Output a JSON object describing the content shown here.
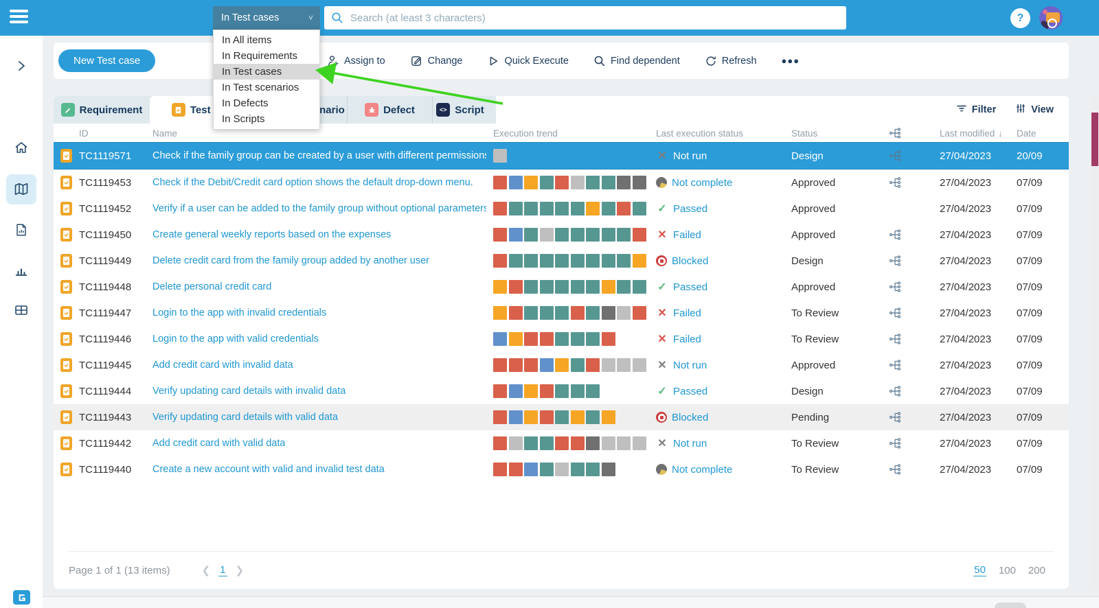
{
  "topbar": {
    "scope_value": "In Test cases",
    "search_placeholder": "Search (at least 3 characters)",
    "help_label": "?"
  },
  "scope_dropdown": {
    "items": [
      "In All items",
      "In Requirements",
      "In Test cases",
      "In Test scenarios",
      "In Defects",
      "In Scripts"
    ],
    "selected": "In Test cases",
    "selected_index": 2
  },
  "toolbar": {
    "new_button_label": "New Test case",
    "actions": [
      {
        "icon": "assign-icon",
        "label": "Assign to"
      },
      {
        "icon": "change-icon",
        "label": "Change"
      },
      {
        "icon": "quick-execute-icon",
        "label": "Quick Execute"
      },
      {
        "icon": "find-dependent-icon",
        "label": "Find dependent"
      },
      {
        "icon": "refresh-icon",
        "label": "Refresh"
      }
    ]
  },
  "tabs": [
    {
      "label": "Requirement",
      "active": false
    },
    {
      "label": "Test case",
      "active": true
    },
    {
      "label": "Test scenario",
      "active": false
    },
    {
      "label": "Defect",
      "active": false
    },
    {
      "label": "Script",
      "active": false
    }
  ],
  "list_header": {
    "filter_label": "Filter",
    "view_label": "View"
  },
  "table": {
    "columns": {
      "id": "ID",
      "name": "Name",
      "trend": "Execution trend",
      "exec": "Last execution status",
      "status": "Status",
      "modified": "Last modified",
      "date": "Date"
    },
    "rows": [
      {
        "id": "TC1119571",
        "name": "Check if the family group can be created by a user with different permissions",
        "trend": [
          "gray"
        ],
        "exec": {
          "type": "notrun",
          "label": "Not run"
        },
        "status": "Design",
        "tree": true,
        "modified": "27/04/2023",
        "date": "20/09",
        "selected": true,
        "highlight": false
      },
      {
        "id": "TC1119453",
        "name": "Check if the Debit/Credit card option shows the default drop-down menu.",
        "trend": [
          "red",
          "blue",
          "orange",
          "teal",
          "red",
          "gray",
          "teal",
          "teal",
          "darkgray",
          "darkgray"
        ],
        "exec": {
          "type": "notcomplete",
          "label": "Not complete"
        },
        "status": "Approved",
        "tree": true,
        "modified": "27/04/2023",
        "date": "07/09",
        "selected": false,
        "highlight": false
      },
      {
        "id": "TC1119452",
        "name": "Verify if a user can be added to the family group without optional parameters",
        "trend": [
          "red",
          "teal",
          "teal",
          "teal",
          "teal",
          "teal",
          "orange",
          "teal",
          "red",
          "teal"
        ],
        "exec": {
          "type": "passed",
          "label": "Passed"
        },
        "status": "Approved",
        "tree": false,
        "modified": "27/04/2023",
        "date": "07/09",
        "selected": false,
        "highlight": false
      },
      {
        "id": "TC1119450",
        "name": "Create general weekly reports based on the expenses",
        "trend": [
          "red",
          "blue",
          "teal",
          "gray",
          "teal",
          "teal",
          "teal",
          "teal",
          "teal",
          "red"
        ],
        "exec": {
          "type": "failed",
          "label": "Failed"
        },
        "status": "Approved",
        "tree": true,
        "modified": "27/04/2023",
        "date": "07/09",
        "selected": false,
        "highlight": false
      },
      {
        "id": "TC1119449",
        "name": "Delete credit card from the family group added by another user",
        "trend": [
          "red",
          "teal",
          "teal",
          "teal",
          "teal",
          "teal",
          "teal",
          "teal",
          "teal",
          "orange"
        ],
        "exec": {
          "type": "blocked",
          "label": "Blocked"
        },
        "status": "Design",
        "tree": true,
        "modified": "27/04/2023",
        "date": "07/09",
        "selected": false,
        "highlight": false
      },
      {
        "id": "TC1119448",
        "name": "Delete personal credit card",
        "trend": [
          "orange",
          "red",
          "teal",
          "teal",
          "teal",
          "teal",
          "teal",
          "orange",
          "teal",
          "teal"
        ],
        "exec": {
          "type": "passed",
          "label": "Passed"
        },
        "status": "Approved",
        "tree": true,
        "modified": "27/04/2023",
        "date": "07/09",
        "selected": false,
        "highlight": false
      },
      {
        "id": "TC1119447",
        "name": "Login to the app with invalid credentials",
        "trend": [
          "orange",
          "red",
          "teal",
          "teal",
          "teal",
          "red",
          "teal",
          "darkgray",
          "gray",
          "red"
        ],
        "exec": {
          "type": "failed",
          "label": "Failed"
        },
        "status": "To Review",
        "tree": true,
        "modified": "27/04/2023",
        "date": "07/09",
        "selected": false,
        "highlight": false
      },
      {
        "id": "TC1119446",
        "name": "Login to the app with valid credentials",
        "trend": [
          "blue",
          "orange",
          "red",
          "red",
          "teal",
          "teal",
          "teal",
          "red"
        ],
        "exec": {
          "type": "failed",
          "label": "Failed"
        },
        "status": "To Review",
        "tree": true,
        "modified": "27/04/2023",
        "date": "07/09",
        "selected": false,
        "highlight": false
      },
      {
        "id": "TC1119445",
        "name": "Add credit card with invalid data",
        "trend": [
          "red",
          "red",
          "red",
          "blue",
          "orange",
          "teal",
          "red",
          "gray",
          "gray",
          "gray"
        ],
        "exec": {
          "type": "notrun",
          "label": "Not run"
        },
        "status": "Approved",
        "tree": true,
        "modified": "27/04/2023",
        "date": "07/09",
        "selected": false,
        "highlight": false
      },
      {
        "id": "TC1119444",
        "name": "Verify updating card details with invalid data",
        "trend": [
          "red",
          "blue",
          "orange",
          "red",
          "teal",
          "teal",
          "teal"
        ],
        "exec": {
          "type": "passed",
          "label": "Passed"
        },
        "status": "Design",
        "tree": true,
        "modified": "27/04/2023",
        "date": "07/09",
        "selected": false,
        "highlight": false
      },
      {
        "id": "TC1119443",
        "name": "Verify updating card details with valid data",
        "trend": [
          "red",
          "blue",
          "orange",
          "red",
          "teal",
          "orange",
          "teal",
          "orange"
        ],
        "exec": {
          "type": "blocked",
          "label": "Blocked"
        },
        "status": "Pending",
        "tree": true,
        "modified": "27/04/2023",
        "date": "07/09",
        "selected": false,
        "highlight": true
      },
      {
        "id": "TC1119442",
        "name": "Add credit card with valid data",
        "trend": [
          "red",
          "gray",
          "teal",
          "teal",
          "red",
          "red",
          "darkgray",
          "gray",
          "gray",
          "gray"
        ],
        "exec": {
          "type": "notrun",
          "label": "Not run"
        },
        "status": "To Review",
        "tree": true,
        "modified": "27/04/2023",
        "date": "07/09",
        "selected": false,
        "highlight": false
      },
      {
        "id": "TC1119440",
        "name": "Create a new account with valid and invalid test data",
        "trend": [
          "red",
          "red",
          "blue",
          "teal",
          "gray",
          "teal",
          "teal",
          "darkgray"
        ],
        "exec": {
          "type": "notcomplete",
          "label": "Not complete"
        },
        "status": "To Review",
        "tree": true,
        "modified": "27/04/2023",
        "date": "07/09",
        "selected": false,
        "highlight": false
      }
    ]
  },
  "pagination": {
    "summary": "Page 1 of 1 (13 items)",
    "page": "1",
    "sizes": [
      "50",
      "100",
      "200"
    ],
    "active_size": "50"
  },
  "colors": {
    "accent_blue": "#2b9cd8",
    "link_blue": "#1f97d2",
    "teal": "#579792",
    "red": "#d9604a",
    "orange": "#f6a525",
    "blue": "#6191cb",
    "gray": "#bfbfbf",
    "darkgray": "#707070",
    "tab_requirement_green": "#57b990",
    "tab_testcase_orange": "#efa62a",
    "tab_defect_red": "#f28585",
    "tab_script_navy": "#1c2b4e",
    "annotation_arrow_green": "#3ed321",
    "scroll_thumb_maroon": "#a23a66"
  }
}
